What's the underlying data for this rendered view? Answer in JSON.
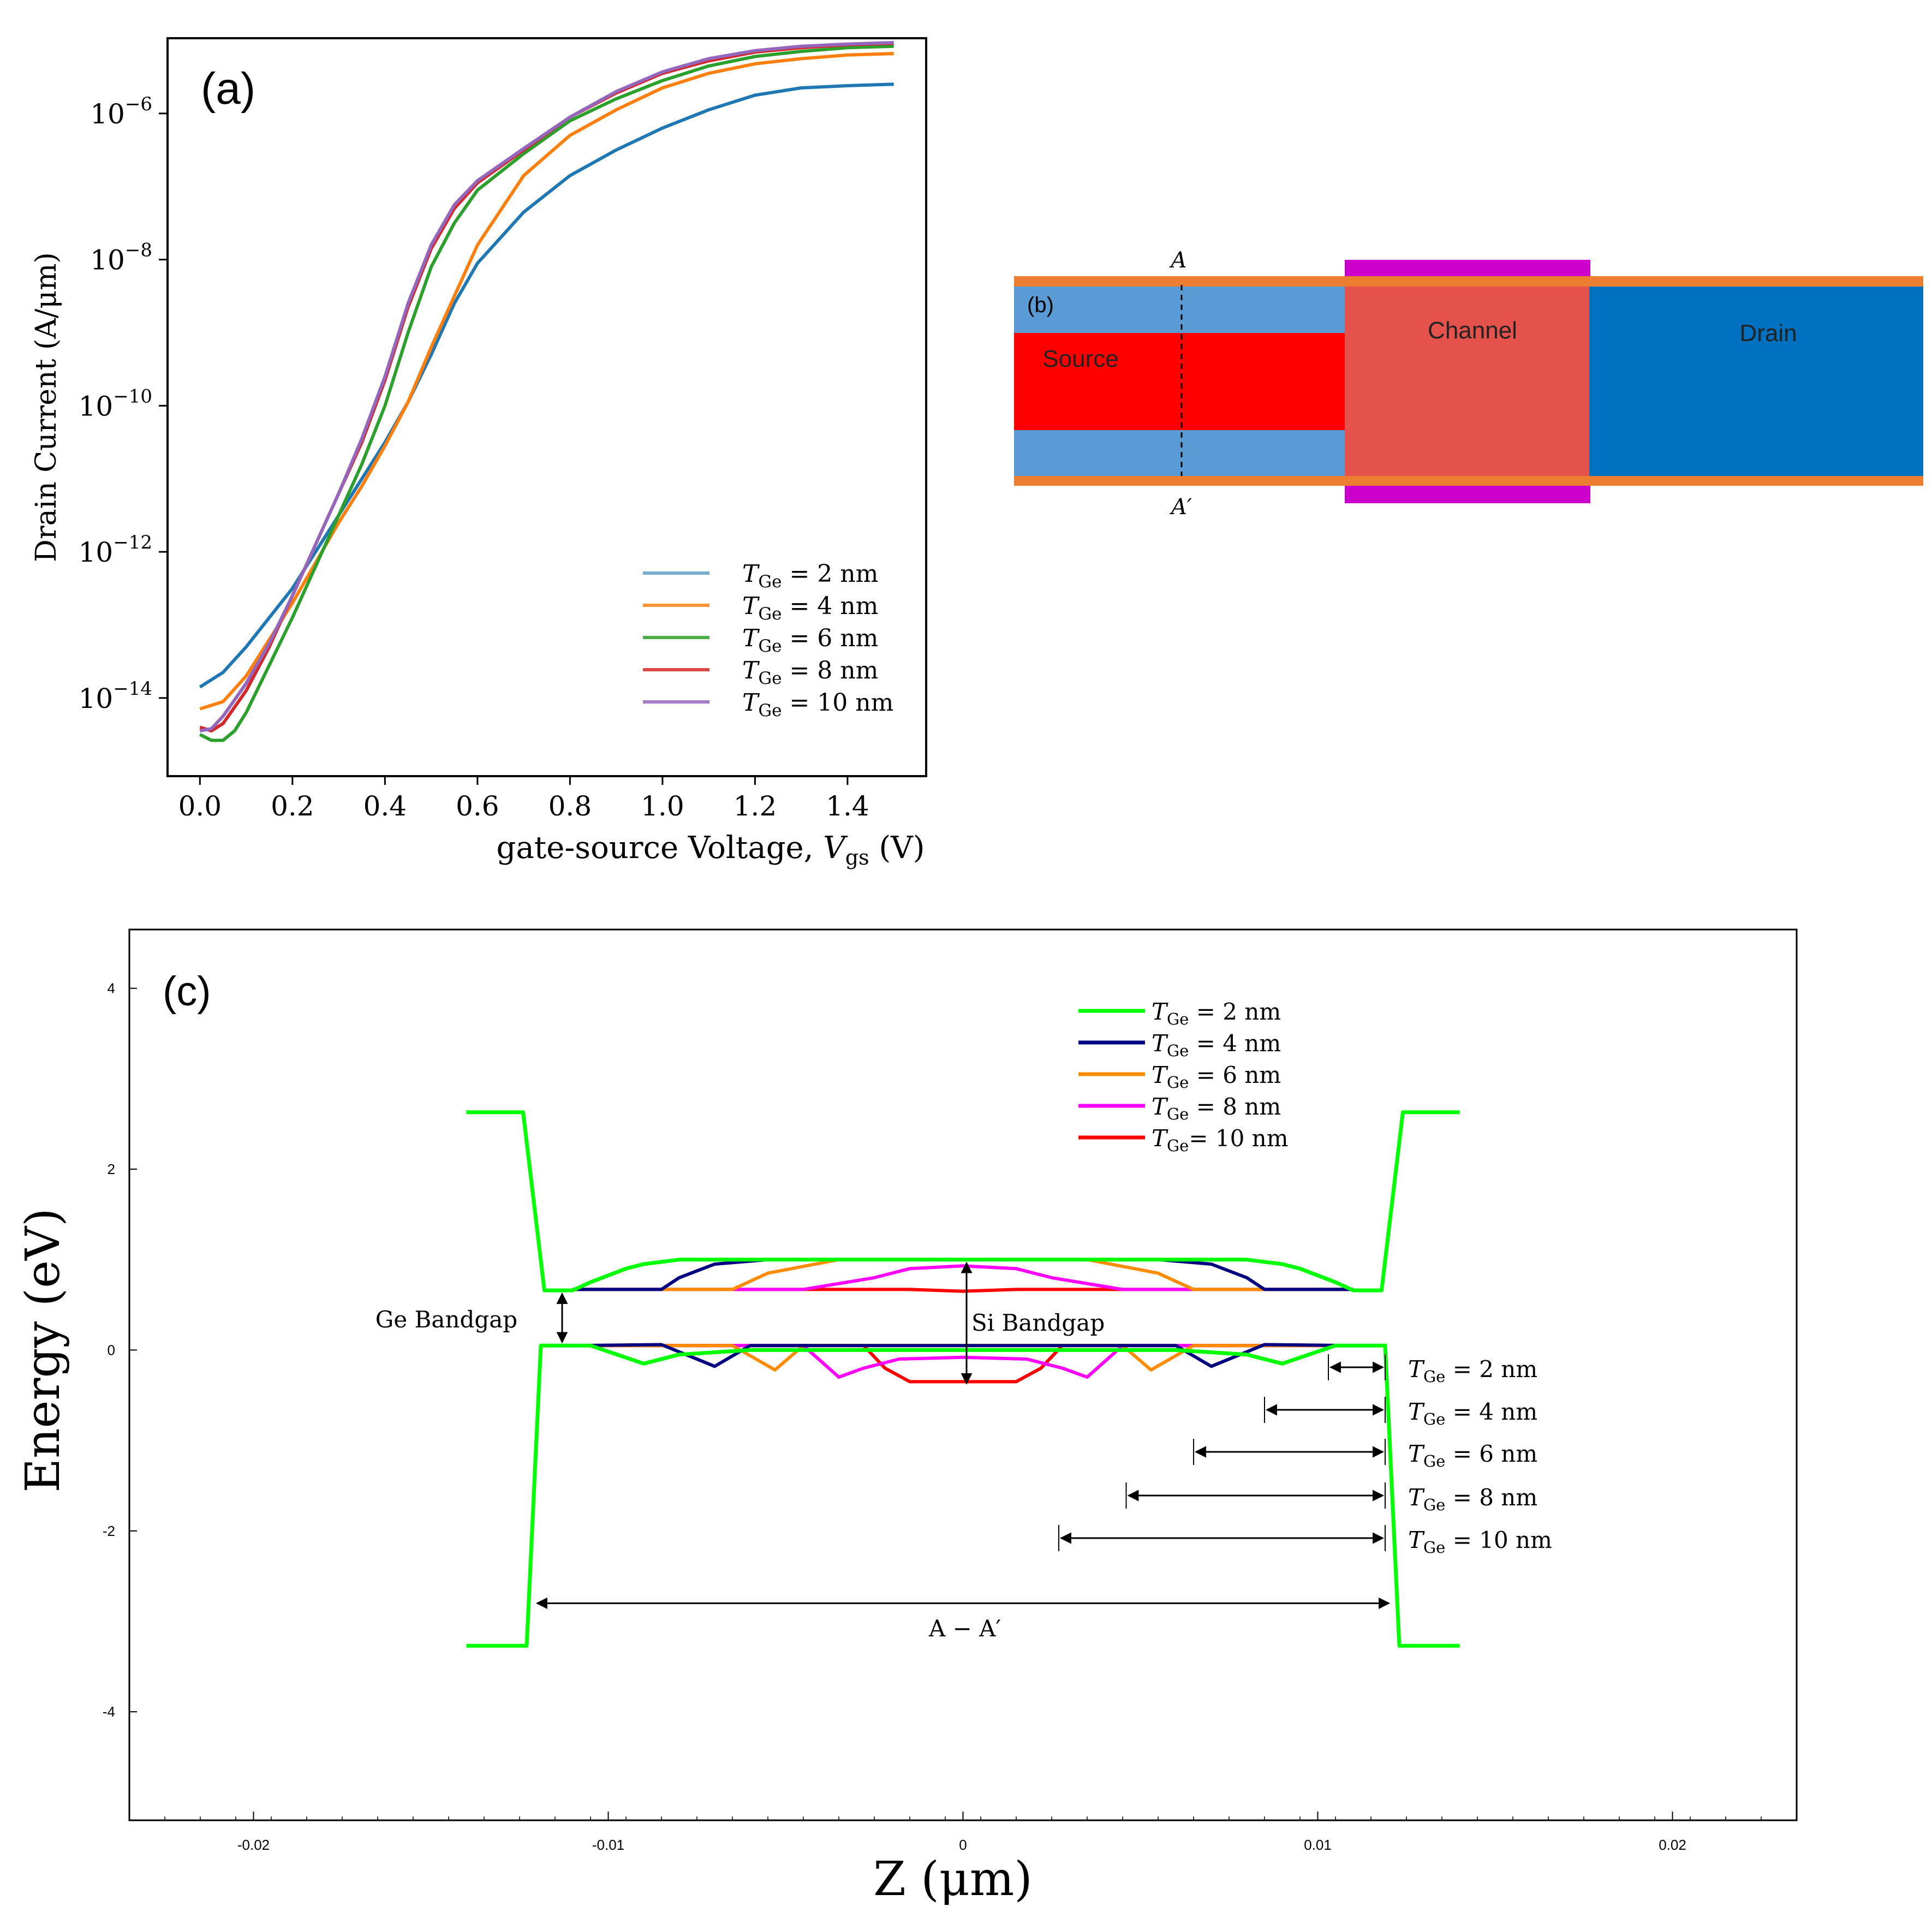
{
  "chart_data": [
    {
      "panel": "(a)",
      "type": "line",
      "title": "",
      "panel_label": "(a)",
      "xlabel_main": "gate-source Voltage, ",
      "xlabel_var": "V",
      "xlabel_sub": "gs",
      "xlabel_unit": " (V)",
      "ylabel": "Drain Current (A/μm)",
      "yscale": "log",
      "xlim": [
        -0.07,
        1.57
      ],
      "ylim_log10": [
        -15.07,
        -4.97
      ],
      "xticks": [
        0.0,
        0.2,
        0.4,
        0.6,
        0.8,
        1.0,
        1.2,
        1.4
      ],
      "xtick_labels": [
        "0.0",
        "0.2",
        "0.4",
        "0.6",
        "0.8",
        "1.0",
        "1.2",
        "1.4"
      ],
      "yticks_log10": [
        -6,
        -8,
        -10,
        -12,
        -14
      ],
      "ytick_base": "10",
      "ytick_exps": [
        "−6",
        "−8",
        "−10",
        "−12",
        "−14"
      ],
      "legend_position": "lower right",
      "series": [
        {
          "name": "T_Ge = 2 nm",
          "legend_var": "T",
          "legend_sub": "Ge",
          "legend_tail": " = 2 nm",
          "color": "#1f77b4",
          "x": [
            0,
            0.05,
            0.1,
            0.15,
            0.2,
            0.25,
            0.3,
            0.35,
            0.4,
            0.45,
            0.5,
            0.55,
            0.6,
            0.7,
            0.8,
            0.9,
            1.0,
            1.1,
            1.2,
            1.3,
            1.4,
            1.5
          ],
          "log10y": [
            -13.85,
            -13.65,
            -13.3,
            -12.9,
            -12.5,
            -12.0,
            -11.5,
            -11.0,
            -10.5,
            -9.95,
            -9.3,
            -8.6,
            -8.05,
            -7.35,
            -6.85,
            -6.5,
            -6.2,
            -5.95,
            -5.75,
            -5.65,
            -5.62,
            -5.6
          ]
        },
        {
          "name": "T_Ge = 4 nm",
          "legend_var": "T",
          "legend_sub": "Ge",
          "legend_tail": " = 4 nm",
          "color": "#ff7f0e",
          "x": [
            0,
            0.05,
            0.1,
            0.15,
            0.2,
            0.25,
            0.3,
            0.35,
            0.4,
            0.45,
            0.5,
            0.55,
            0.6,
            0.7,
            0.8,
            0.9,
            1.0,
            1.1,
            1.2,
            1.3,
            1.4,
            1.5
          ],
          "log10y": [
            -14.15,
            -14.05,
            -13.7,
            -13.2,
            -12.7,
            -12.15,
            -11.6,
            -11.1,
            -10.55,
            -9.95,
            -9.2,
            -8.5,
            -7.8,
            -6.85,
            -6.3,
            -5.95,
            -5.65,
            -5.45,
            -5.32,
            -5.25,
            -5.2,
            -5.18
          ]
        },
        {
          "name": "T_Ge = 6 nm",
          "legend_var": "T",
          "legend_sub": "Ge",
          "legend_tail": " = 6 nm",
          "color": "#2ca02c",
          "x": [
            0,
            0.025,
            0.05,
            0.075,
            0.1,
            0.15,
            0.2,
            0.25,
            0.3,
            0.35,
            0.4,
            0.45,
            0.5,
            0.55,
            0.6,
            0.7,
            0.8,
            0.9,
            1.0,
            1.1,
            1.2,
            1.3,
            1.4,
            1.5
          ],
          "log10y": [
            -14.5,
            -14.58,
            -14.58,
            -14.45,
            -14.2,
            -13.55,
            -12.9,
            -12.2,
            -11.5,
            -10.8,
            -10.0,
            -9.0,
            -8.1,
            -7.5,
            -7.05,
            -6.55,
            -6.1,
            -5.8,
            -5.55,
            -5.35,
            -5.22,
            -5.15,
            -5.1,
            -5.08
          ]
        },
        {
          "name": "T_Ge = 8 nm",
          "legend_var": "T",
          "legend_sub": "Ge",
          "legend_tail": " = 8 nm",
          "color": "#d62728",
          "x": [
            0,
            0.025,
            0.05,
            0.1,
            0.15,
            0.2,
            0.25,
            0.3,
            0.35,
            0.4,
            0.45,
            0.5,
            0.55,
            0.6,
            0.7,
            0.8,
            0.9,
            1.0,
            1.1,
            1.2,
            1.3,
            1.4,
            1.5
          ],
          "log10y": [
            -14.4,
            -14.45,
            -14.35,
            -13.9,
            -13.3,
            -12.6,
            -11.9,
            -11.2,
            -10.5,
            -9.65,
            -8.65,
            -7.85,
            -7.3,
            -6.95,
            -6.5,
            -6.05,
            -5.72,
            -5.45,
            -5.28,
            -5.16,
            -5.1,
            -5.06,
            -5.04
          ]
        },
        {
          "name": "T_Ge = 10 nm",
          "legend_var": "T",
          "legend_sub": "Ge",
          "legend_tail": " = 10 nm",
          "color": "#9467bd",
          "x": [
            0,
            0.025,
            0.05,
            0.1,
            0.15,
            0.2,
            0.25,
            0.3,
            0.35,
            0.4,
            0.45,
            0.5,
            0.55,
            0.6,
            0.7,
            0.8,
            0.9,
            1.0,
            1.1,
            1.2,
            1.3,
            1.4,
            1.5
          ],
          "log10y": [
            -14.45,
            -14.42,
            -14.25,
            -13.8,
            -13.25,
            -12.6,
            -11.9,
            -11.2,
            -10.45,
            -9.6,
            -8.6,
            -7.8,
            -7.25,
            -6.92,
            -6.48,
            -6.05,
            -5.7,
            -5.43,
            -5.25,
            -5.14,
            -5.08,
            -5.05,
            -5.03
          ]
        }
      ]
    },
    {
      "panel": "(b)",
      "type": "diagram",
      "panel_label": "(b)",
      "regions": [
        {
          "name": "Source",
          "color": "#ff0000"
        },
        {
          "name": "Channel",
          "color": "#e5524b"
        },
        {
          "name": "Drain",
          "color": "#0070c0"
        }
      ],
      "cladding_color": "#5b9bd5",
      "oxide_color": "#ed7d31",
      "gate_color": "#cc00cc",
      "cut_top": "A",
      "cut_bottom": "A′"
    },
    {
      "panel": "(c)",
      "type": "line",
      "panel_label": "(c)",
      "xlabel": "Z (μm)",
      "ylabel": "Energy (eV)",
      "xlim": [
        -0.0235,
        0.0235
      ],
      "ylim": [
        -5.2,
        4.65
      ],
      "xticks": [
        -0.02,
        -0.01,
        0,
        0.01,
        0.02
      ],
      "xtick_labels": [
        "-0.02",
        "-0.01",
        "0",
        "0.01",
        "0.02"
      ],
      "yticks": [
        4,
        2,
        0,
        -2,
        -4
      ],
      "ytick_labels": [
        "4",
        "2",
        "0",
        "-2",
        "-4"
      ],
      "legend_position": "top-center",
      "series": [
        {
          "name": "T_Ge = 2 nm",
          "legend_var": "T",
          "legend_sub": "Ge",
          "legend_tail": " = 2 nm",
          "color": "#00ff00",
          "cb_x": [
            0.004,
            0.006,
            0.008,
            0.009,
            0.0095,
            0.0105,
            0.011
          ],
          "cb_y": [
            1.0,
            1.0,
            1.0,
            0.95,
            0.9,
            0.75,
            0.66
          ],
          "vb_x": [
            0.004,
            0.006,
            0.008,
            0.009,
            0.0105,
            0.011
          ],
          "vb_y": [
            0.0,
            0.0,
            -0.05,
            -0.15,
            0.05,
            0.05
          ]
        },
        {
          "name": "T_Ge = 4 nm",
          "legend_var": "T",
          "legend_sub": "Ge",
          "legend_tail": " = 4 nm",
          "color": "#000080",
          "cb_x": [
            0.0025,
            0.0055,
            0.007,
            0.008,
            0.0085,
            0.011
          ],
          "cb_y": [
            1.0,
            1.0,
            0.95,
            0.8,
            0.67,
            0.67
          ],
          "vb_x": [
            0.0025,
            0.006,
            0.007,
            0.0085,
            0.011
          ],
          "vb_y": [
            0.05,
            0.05,
            -0.18,
            0.06,
            0.05
          ]
        },
        {
          "name": "T_Ge = 6 nm",
          "legend_var": "T",
          "legend_sub": "Ge",
          "legend_tail": " = 6 nm",
          "color": "#ff8c00",
          "cb_x": [
            0.0015,
            0.0035,
            0.0055,
            0.0065,
            0.011
          ],
          "cb_y": [
            1.0,
            1.0,
            0.85,
            0.67,
            0.67
          ],
          "vb_x": [
            0.0015,
            0.0045,
            0.0053,
            0.0065,
            0.011
          ],
          "vb_y": [
            0.05,
            0.05,
            -0.22,
            0.05,
            0.05
          ]
        },
        {
          "name": "T_Ge = 8 nm",
          "legend_var": "T",
          "legend_sub": "Ge",
          "legend_tail": " = 8 nm",
          "color": "#ff00ff",
          "cb_x": [
            0.0,
            0.0015,
            0.0025,
            0.0045,
            0.011
          ],
          "cb_y": [
            0.93,
            0.9,
            0.8,
            0.67,
            0.67
          ],
          "vb_x": [
            0.0,
            0.0018,
            0.0028,
            0.0035,
            0.0045,
            0.011
          ],
          "vb_y": [
            -0.08,
            -0.1,
            -0.2,
            -0.3,
            0.05,
            0.05
          ]
        },
        {
          "name": "T_Ge = 10 nm",
          "legend_var": "T",
          "legend_sub": "Ge",
          "legend_tail": "= 10 nm",
          "color": "#ff0000",
          "cb_x": [
            0.0,
            0.0015,
            0.002,
            0.0028,
            0.011
          ],
          "cb_y": [
            0.65,
            0.67,
            0.67,
            0.67,
            0.67
          ],
          "vb_x": [
            0.0,
            0.0015,
            0.0022,
            0.0028,
            0.011
          ],
          "vb_y": [
            -0.35,
            -0.35,
            -0.2,
            0.05,
            0.05
          ]
        }
      ],
      "outer_profile": {
        "x_edge": 0.0121,
        "x_end": 0.014,
        "barrier_top": 2.63,
        "barrier_bottom": -3.27,
        "ge_cb": 0.66,
        "ge_vb": 0.05
      },
      "annotations": {
        "ge_bandgap": "Ge Bandgap",
        "si_bandgap": "Si Bandgap",
        "span": "A − A′",
        "widths": [
          {
            "var": "T",
            "sub": "Ge",
            "tail": " = 2 nm",
            "x_start": 0.0103
          },
          {
            "var": "T",
            "sub": "Ge",
            "tail": " = 4 nm",
            "x_start": 0.0085
          },
          {
            "var": "T",
            "sub": "Ge",
            "tail": " = 6 nm",
            "x_start": 0.0065
          },
          {
            "var": "T",
            "sub": "Ge",
            "tail": " = 8 nm",
            "x_start": 0.0046
          },
          {
            "var": "T",
            "sub": "Ge",
            "tail": " = 10 nm",
            "x_start": 0.0027
          }
        ]
      }
    }
  ]
}
